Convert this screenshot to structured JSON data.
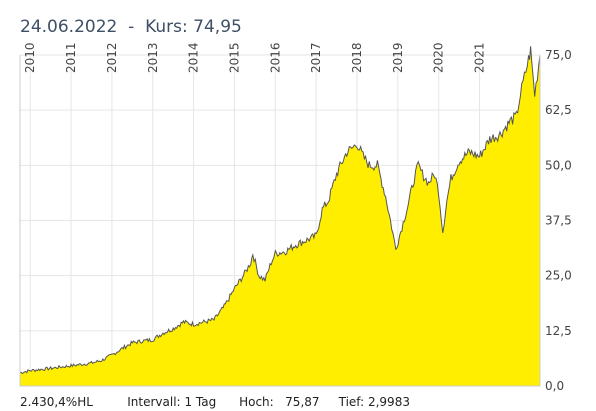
{
  "header": {
    "date": "24.06.2022",
    "separator": "-",
    "price_label": "Kurs:",
    "price_value": "74,95"
  },
  "footer": {
    "perf": "2.430,4%HL",
    "interval_label": "Intervall:",
    "interval_value": "1 Tag",
    "high_label": "Hoch:",
    "high_value": "75,87",
    "low_label": "Tief:",
    "low_value": "2,9983"
  },
  "chart_data": {
    "type": "area",
    "title": "",
    "xlabel": "",
    "ylabel": "",
    "x_ticks": [
      "2010",
      "2011",
      "2012",
      "2013",
      "2014",
      "2015",
      "2016",
      "2017",
      "2018",
      "2019",
      "2020",
      "2021"
    ],
    "y_ticks": [
      "0,0",
      "12,5",
      "25,0",
      "37,5",
      "50,0",
      "62,5",
      "75,0"
    ],
    "ylim": [
      0,
      75
    ],
    "xlim": [
      2009.75,
      2022.48
    ],
    "grid": true,
    "fill_color": "#ffee00",
    "line_color": "#555555",
    "x": [
      2009.75,
      2010.0,
      2010.5,
      2011.0,
      2011.5,
      2011.75,
      2012.0,
      2012.25,
      2012.5,
      2012.75,
      2013.0,
      2013.25,
      2013.5,
      2013.75,
      2014.0,
      2014.25,
      2014.5,
      2014.75,
      2015.0,
      2015.25,
      2015.4,
      2015.45,
      2015.6,
      2015.75,
      2015.9,
      2016.0,
      2016.25,
      2016.5,
      2016.75,
      2017.0,
      2017.15,
      2017.3,
      2017.5,
      2017.75,
      2017.9,
      2018.0,
      2018.15,
      2018.3,
      2018.5,
      2018.7,
      2018.85,
      2018.95,
      2019.1,
      2019.25,
      2019.4,
      2019.5,
      2019.6,
      2019.75,
      2019.9,
      2020.0,
      2020.1,
      2020.2,
      2020.3,
      2020.5,
      2020.75,
      2021.0,
      2021.25,
      2021.5,
      2021.75,
      2021.9,
      2022.0,
      2022.1,
      2022.2,
      2022.25,
      2022.35,
      2022.48
    ],
    "y": [
      3.0,
      3.5,
      4.0,
      4.6,
      5.2,
      5.8,
      7.0,
      8.5,
      9.8,
      10.2,
      10.5,
      12.0,
      13.0,
      14.5,
      14.0,
      14.5,
      15.0,
      18.0,
      22.0,
      25.5,
      28.0,
      30.0,
      25.0,
      24.0,
      28.0,
      30.0,
      30.5,
      32.0,
      33.0,
      34.0,
      40.0,
      42.0,
      48.0,
      53.0,
      54.0,
      55.0,
      52.0,
      50.0,
      50.0,
      43.0,
      36.0,
      31.0,
      36.0,
      41.0,
      47.0,
      50.0,
      48.0,
      46.0,
      48.0,
      44.0,
      35.0,
      42.0,
      47.0,
      51.0,
      53.0,
      52.0,
      56.0,
      57.0,
      60.0,
      61.0,
      66.0,
      70.0,
      74.0,
      76.0,
      66.0,
      75.0
    ]
  }
}
